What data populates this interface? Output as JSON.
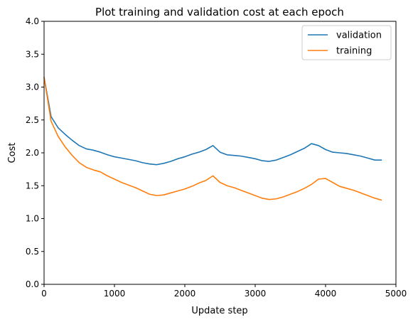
{
  "chart_data": {
    "type": "line",
    "title": "Plot training and validation cost at each epoch",
    "xlabel": "Update step",
    "ylabel": "Cost",
    "xlim": [
      0,
      5000
    ],
    "ylim": [
      0,
      4.0
    ],
    "xticks": [
      "0",
      "1000",
      "2000",
      "3000",
      "4000",
      "5000"
    ],
    "xtick_values": [
      0,
      1000,
      2000,
      3000,
      4000,
      5000
    ],
    "yticks": [
      "0.0",
      "0.5",
      "1.0",
      "1.5",
      "2.0",
      "2.5",
      "3.0",
      "3.5",
      "4.0"
    ],
    "ytick_values": [
      0,
      0.5,
      1.0,
      1.5,
      2.0,
      2.5,
      3.0,
      3.5,
      4.0
    ],
    "grid": false,
    "legend_position": "top-right",
    "x": [
      0,
      100,
      200,
      300,
      400,
      500,
      600,
      700,
      800,
      900,
      1000,
      1100,
      1200,
      1300,
      1400,
      1500,
      1600,
      1700,
      1800,
      1900,
      2000,
      2100,
      2200,
      2300,
      2400,
      2500,
      2600,
      2700,
      2800,
      2900,
      3000,
      3100,
      3200,
      3300,
      3400,
      3500,
      3600,
      3700,
      3800,
      3900,
      4000,
      4100,
      4200,
      4300,
      4400,
      4500,
      4600,
      4700,
      4800
    ],
    "series": [
      {
        "name": "validation",
        "color": "#1f77b4",
        "values": [
          3.15,
          2.55,
          2.38,
          2.28,
          2.19,
          2.11,
          2.06,
          2.04,
          2.01,
          1.97,
          1.94,
          1.92,
          1.9,
          1.88,
          1.85,
          1.83,
          1.82,
          1.84,
          1.87,
          1.91,
          1.94,
          1.98,
          2.01,
          2.05,
          2.11,
          2.01,
          1.97,
          1.96,
          1.95,
          1.93,
          1.91,
          1.88,
          1.87,
          1.89,
          1.93,
          1.97,
          2.02,
          2.07,
          2.14,
          2.11,
          2.05,
          2.01,
          2.0,
          1.99,
          1.97,
          1.95,
          1.92,
          1.89,
          1.89
        ]
      },
      {
        "name": "training",
        "color": "#ff7f0e",
        "values": [
          3.15,
          2.48,
          2.25,
          2.09,
          1.96,
          1.85,
          1.78,
          1.74,
          1.71,
          1.65,
          1.6,
          1.55,
          1.51,
          1.47,
          1.42,
          1.37,
          1.35,
          1.36,
          1.39,
          1.42,
          1.45,
          1.49,
          1.54,
          1.58,
          1.65,
          1.55,
          1.5,
          1.47,
          1.43,
          1.39,
          1.35,
          1.31,
          1.29,
          1.3,
          1.33,
          1.37,
          1.41,
          1.46,
          1.52,
          1.6,
          1.61,
          1.55,
          1.49,
          1.46,
          1.43,
          1.39,
          1.35,
          1.31,
          1.28
        ]
      }
    ]
  }
}
